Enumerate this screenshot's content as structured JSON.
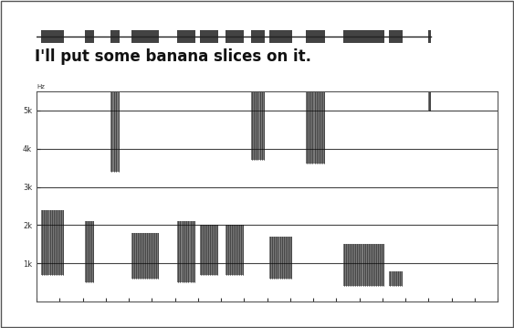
{
  "chart_data": {
    "type": "spectrogram",
    "title": "I'll put some banana slices on it.",
    "y_label": "Hz",
    "xlim": [
      0,
      2.0
    ],
    "xticks": [
      0,
      0.1,
      0.2,
      0.3,
      0.4,
      0.5,
      0.6,
      0.7,
      0.8,
      0.9,
      1.0,
      1.1,
      1.2,
      1.3,
      1.4,
      1.5,
      1.6,
      1.7,
      1.8,
      1.9,
      2.0
    ],
    "ylim": [
      0,
      5500
    ],
    "yticks": [
      {
        "value": 1000,
        "label": "1k"
      },
      {
        "value": 2000,
        "label": "2k"
      },
      {
        "value": 3000,
        "label": "3k"
      },
      {
        "value": 4000,
        "label": "4k"
      },
      {
        "value": 5000,
        "label": "5k"
      }
    ],
    "grid": true,
    "tick_labels": "y",
    "color": "#222222",
    "energy": [
      {
        "t": [
          0.02,
          0.12
        ],
        "f": [
          700,
          2400
        ]
      },
      {
        "t": [
          0.21,
          0.25
        ],
        "f": [
          500,
          2100
        ]
      },
      {
        "t": [
          0.32,
          0.36
        ],
        "f": [
          3400,
          5500
        ]
      },
      {
        "t": [
          0.41,
          0.53
        ],
        "f": [
          600,
          1800
        ]
      },
      {
        "t": [
          0.61,
          0.69
        ],
        "f": [
          500,
          2100
        ]
      },
      {
        "t": [
          0.71,
          0.79
        ],
        "f": [
          700,
          2000
        ]
      },
      {
        "t": [
          0.82,
          0.9
        ],
        "f": [
          700,
          2000
        ]
      },
      {
        "t": [
          0.93,
          0.99
        ],
        "f": [
          3700,
          5500
        ]
      },
      {
        "t": [
          1.01,
          1.11
        ],
        "f": [
          600,
          1700
        ]
      },
      {
        "t": [
          1.17,
          1.25
        ],
        "f": [
          3600,
          5500
        ]
      },
      {
        "t": [
          1.33,
          1.51
        ],
        "f": [
          400,
          1500
        ]
      },
      {
        "t": [
          1.53,
          1.59
        ],
        "f": [
          400,
          800
        ]
      },
      {
        "t": [
          1.7,
          1.71
        ],
        "f": [
          5000,
          5500
        ]
      }
    ]
  }
}
